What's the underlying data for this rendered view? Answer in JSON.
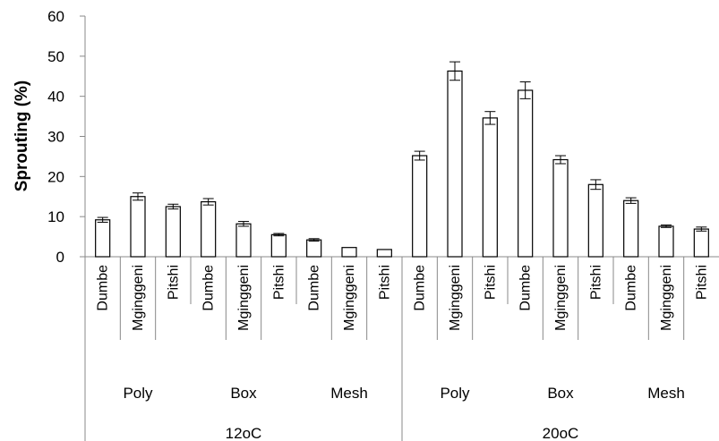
{
  "chart_data": {
    "type": "bar",
    "ylabel": "Sprouting (%)",
    "ylim": [
      0,
      60
    ],
    "yticks": [
      0,
      10,
      20,
      30,
      40,
      50,
      60
    ],
    "categories": [
      "Dumbe",
      "Mginggeni",
      "Pitshi",
      "Dumbe",
      "Mginggeni",
      "Pitshi",
      "Dumbe",
      "Mginggeni",
      "Pitshi",
      "Dumbe",
      "Mginggeni",
      "Pitshi",
      "Dumbe",
      "Mginggeni",
      "Pitshi",
      "Dumbe",
      "Mginggeni",
      "Pitshi"
    ],
    "packaging": [
      "Poly",
      "Box",
      "Mesh",
      "Poly",
      "Box",
      "Mesh"
    ],
    "temperature": [
      "12oC",
      "20oC"
    ],
    "values": [
      9.2,
      15.0,
      12.5,
      13.7,
      8.2,
      5.5,
      4.2,
      2.3,
      1.8,
      25.2,
      46.3,
      34.6,
      41.5,
      24.2,
      18.0,
      14.0,
      7.6,
      6.9
    ],
    "errors": [
      0.6,
      0.9,
      0.6,
      0.8,
      0.6,
      0.3,
      0.3,
      0.0,
      0.0,
      1.1,
      2.3,
      1.6,
      2.1,
      1.0,
      1.2,
      0.7,
      0.3,
      0.5
    ],
    "grid": false,
    "legend": "none"
  }
}
